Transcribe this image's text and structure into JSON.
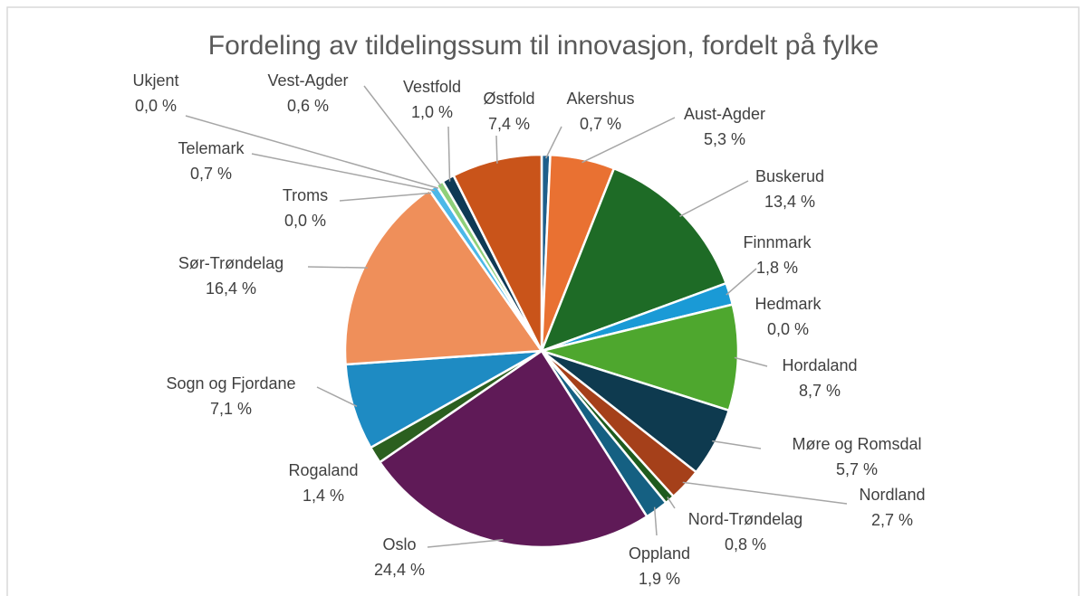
{
  "chart_data": {
    "type": "pie",
    "title": "Fordeling av tildelingssum til innovasjon, fordelt på fylke",
    "categories": [
      "Akershus",
      "Aust-Agder",
      "Buskerud",
      "Finnmark",
      "Hedmark",
      "Hordaland",
      "Møre og Romsdal",
      "Nordland",
      "Nord-Trøndelag",
      "Oppland",
      "Oslo",
      "Rogaland",
      "Sogn og Fjordane",
      "Sør-Trøndelag",
      "Troms",
      "Telemark",
      "Ukjent",
      "Vest-Agder",
      "Vestfold",
      "Østfold"
    ],
    "values": [
      0.7,
      5.3,
      13.4,
      1.8,
      0.0,
      8.7,
      5.7,
      2.7,
      0.8,
      1.9,
      24.4,
      1.4,
      7.1,
      16.4,
      0.0,
      0.7,
      0.0,
      0.6,
      1.0,
      7.4
    ],
    "value_labels": [
      "0,7 %",
      "5,3 %",
      "13,4 %",
      "1,8 %",
      "0,0 %",
      "8,7 %",
      "5,7 %",
      "2,7 %",
      "0,8 %",
      "1,9 %",
      "24,4 %",
      "1,4 %",
      "7,1 %",
      "16,4 %",
      "0,0 %",
      "0,7 %",
      "0,0 %",
      "0,6 %",
      "1,0 %",
      "7,4 %"
    ],
    "colors": [
      "#1f5f8b",
      "#e97132",
      "#1e6b26",
      "#1a9ad6",
      "#0e3a4f",
      "#4ea72e",
      "#0e3a4f",
      "#a5401a",
      "#1e5b1e",
      "#156082",
      "#5f1a57",
      "#2b5f1f",
      "#1e8bc3",
      "#ef8f5a",
      "#2b5f1f",
      "#4cb8e8",
      "#777777",
      "#8fd07a",
      "#0f3a55",
      "#c9541a"
    ]
  }
}
